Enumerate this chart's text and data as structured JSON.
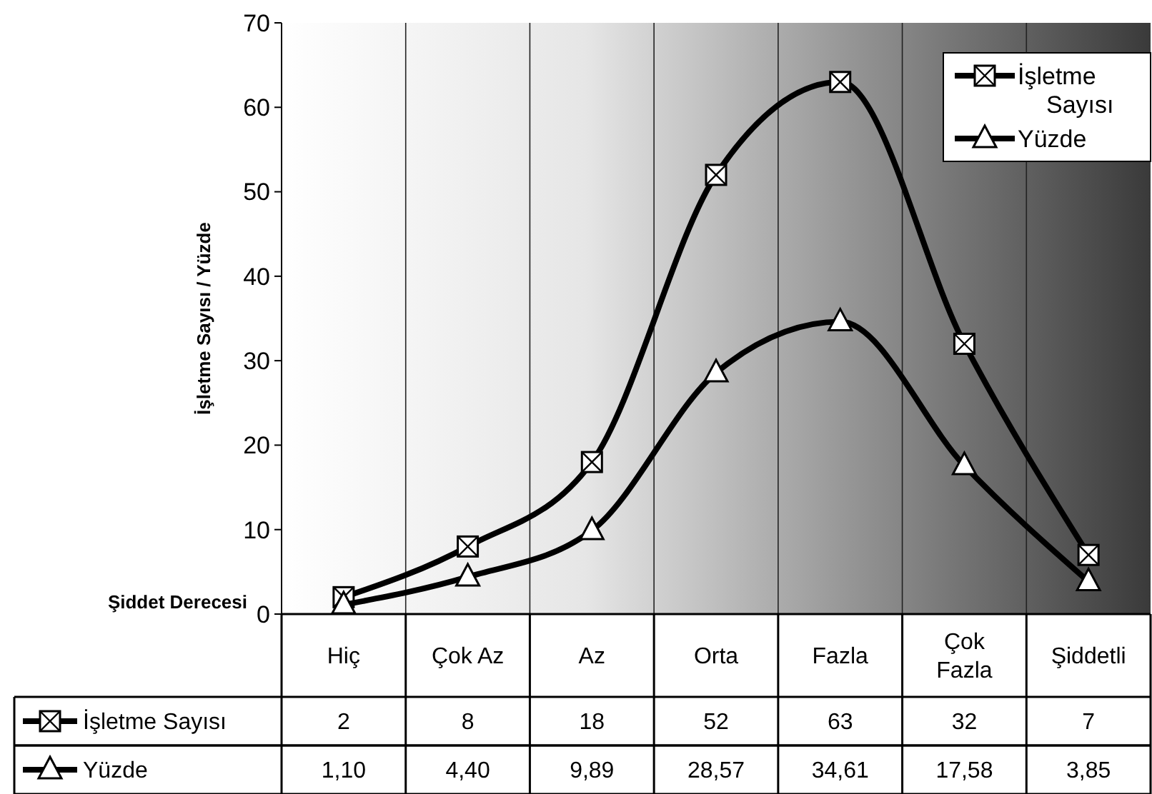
{
  "chart_data": {
    "type": "line",
    "xlabel": "Şiddet Derecesi",
    "ylabel": "İşletme Sayısı / Yüzde",
    "categories": [
      "Hiç",
      "Çok Az",
      "Az",
      "Orta",
      "Fazla",
      "Çok Fazla",
      "Şiddetli"
    ],
    "series": [
      {
        "name": "İşletme Sayısı",
        "color": "#000000",
        "marker": "square",
        "values": [
          2,
          8,
          18,
          52,
          63,
          32,
          7
        ],
        "value_labels": [
          "2",
          "8",
          "18",
          "52",
          "63",
          "32",
          "7"
        ]
      },
      {
        "name": "Yüzde",
        "color": "#000000",
        "marker": "triangle",
        "values": [
          1.1,
          4.4,
          9.89,
          28.57,
          34.61,
          17.58,
          3.85
        ],
        "value_labels": [
          "1,10",
          "4,40",
          "9,89",
          "28,57",
          "34,61",
          "17,58",
          "3,85"
        ]
      }
    ],
    "ylim": [
      0,
      70
    ],
    "yticks": [
      0,
      10,
      20,
      30,
      40,
      50,
      60,
      70
    ],
    "grid": "x",
    "legend": "top right",
    "line_style": "solid"
  }
}
